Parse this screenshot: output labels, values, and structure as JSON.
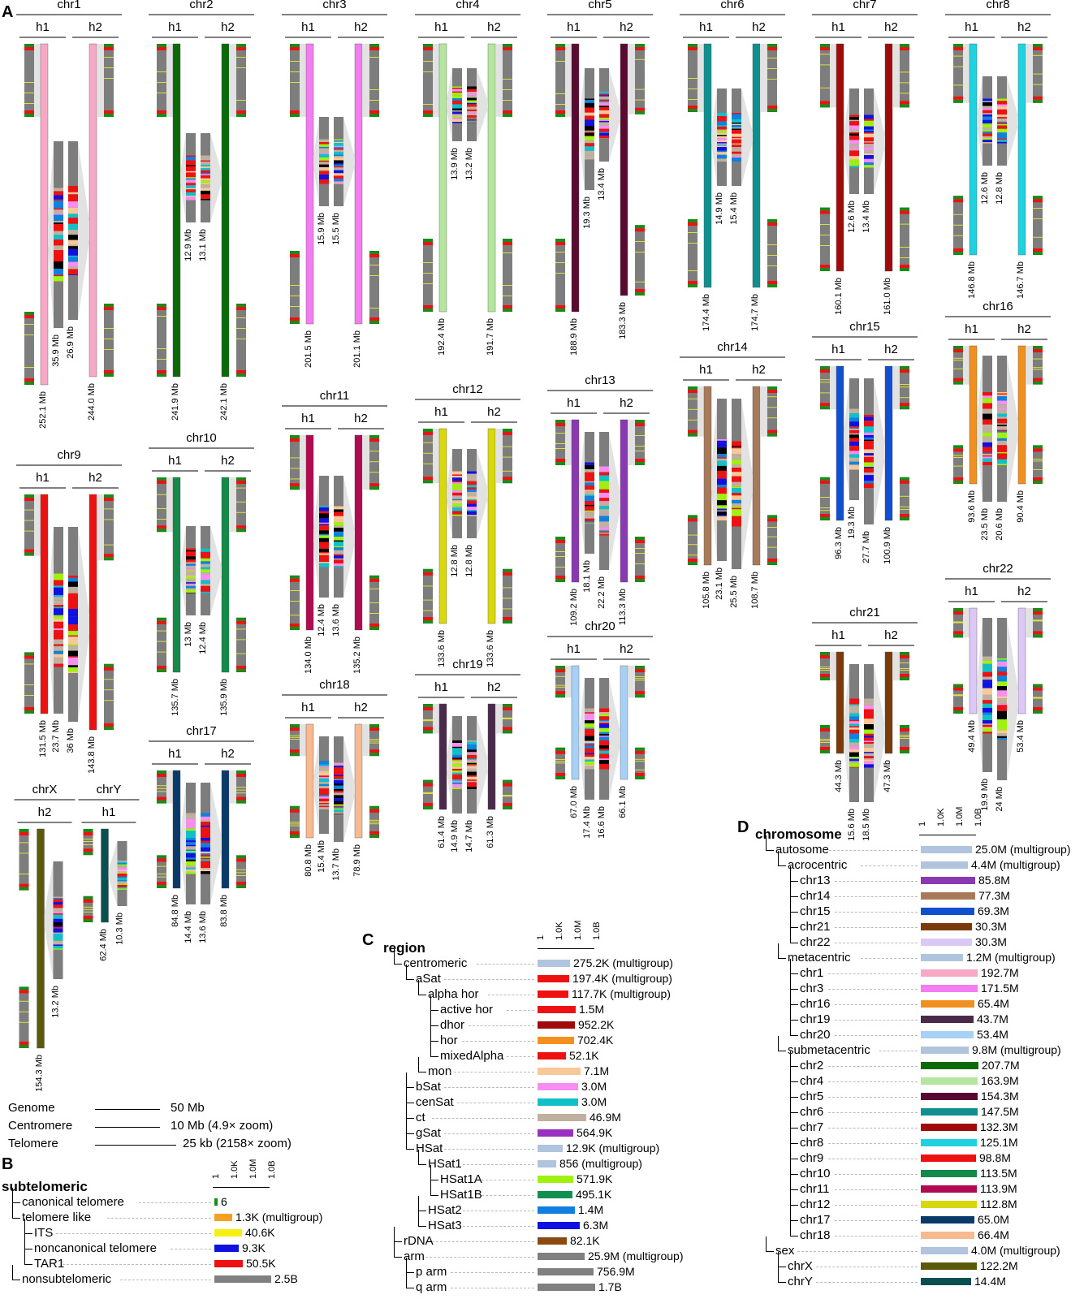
{
  "panels": {
    "a": "A",
    "b": "B",
    "c": "C",
    "d": "D"
  },
  "haplotypes": {
    "h1": "h1",
    "h2": "h2"
  },
  "chromosomes": [
    {
      "name": "chr1",
      "color": "#f7a8c4",
      "h1": "252.1 Mb",
      "h2": "244.0 Mb",
      "c1": "35.9 Mb",
      "c2": "26.9 Mb"
    },
    {
      "name": "chr2",
      "color": "#0a6a0a",
      "h1": "241.9 Mb",
      "h2": "242.1 Mb",
      "c1": "12.9 Mb",
      "c2": "13.1 Mb"
    },
    {
      "name": "chr3",
      "color": "#f37cf0",
      "h1": "201.5 Mb",
      "h2": "201.1 Mb",
      "c1": "15.9 Mb",
      "c2": "15.5 Mb"
    },
    {
      "name": "chr4",
      "color": "#b4e6a0",
      "h1": "192.4 Mb",
      "h2": "191.7 Mb",
      "c1": "13.9 Mb",
      "c2": "13.2 Mb"
    },
    {
      "name": "chr5",
      "color": "#5a0a30",
      "h1": "188.9 Mb",
      "h2": "183.3 Mb",
      "c1": "19.3 Mb",
      "c2": "13.4 Mb"
    },
    {
      "name": "chr6",
      "color": "#0f8f8f",
      "h1": "174.4 Mb",
      "h2": "174.7 Mb",
      "c1": "14.9 Mb",
      "c2": "15.4 Mb"
    },
    {
      "name": "chr7",
      "color": "#a00a0a",
      "h1": "160.1 Mb",
      "h2": "161.0 Mb",
      "c1": "12.6 Mb",
      "c2": "13.4 Mb"
    },
    {
      "name": "chr8",
      "color": "#1ed2e0",
      "h1": "146.8 Mb",
      "h2": "146.7 Mb",
      "c1": "12.6 Mb",
      "c2": "12.8 Mb"
    },
    {
      "name": "chr9",
      "color": "#ee1111",
      "h1": "131.5 Mb",
      "h2": "143.8 Mb",
      "c1": "23.7 Mb",
      "c2": "36 Mb"
    },
    {
      "name": "chr10",
      "color": "#138a4a",
      "h1": "135.7 Mb",
      "h2": "135.9 Mb",
      "c1": "13 Mb",
      "c2": "12.4 Mb"
    },
    {
      "name": "chr11",
      "color": "#b00a50",
      "h1": "134.0 Mb",
      "h2": "135.2 Mb",
      "c1": "12.4 Mb",
      "c2": "13.6 Mb"
    },
    {
      "name": "chr12",
      "color": "#d8d80a",
      "h1": "133.6 Mb",
      "h2": "133.6 Mb",
      "c1": "12.8 Mb",
      "c2": "12.8 Mb"
    },
    {
      "name": "chr13",
      "color": "#8a3ab0",
      "h1": "109.2 Mb",
      "h2": "113.3 Mb",
      "c1": "18.1 Mb",
      "c2": "22.2 Mb"
    },
    {
      "name": "chr14",
      "color": "#a87a5a",
      "h1": "105.8 Mb",
      "h2": "108.7 Mb",
      "c1": "23.1 Mb",
      "c2": "25.5 Mb"
    },
    {
      "name": "chr15",
      "color": "#1050d0",
      "h1": "96.3 Mb",
      "h2": "100.9 Mb",
      "c1": "19.3 Mb",
      "c2": "27.7 Mb"
    },
    {
      "name": "chr16",
      "color": "#f09020",
      "h1": "93.6 Mb",
      "h2": "90.4 Mb",
      "c1": "23.5 Mb",
      "c2": "20.6 Mb"
    },
    {
      "name": "chr17",
      "color": "#0a3a6a",
      "h1": "84.8 Mb",
      "h2": "83.8 Mb",
      "c1": "14.4 Mb",
      "c2": "13.6 Mb"
    },
    {
      "name": "chr18",
      "color": "#f8b890",
      "h1": "80.8 Mb",
      "h2": "78.9 Mb",
      "c1": "15.4 Mb",
      "c2": "13.7 Mb"
    },
    {
      "name": "chr19",
      "color": "#4a2a4a",
      "h1": "61.4 Mb",
      "h2": "61.3 Mb",
      "c1": "14.9 Mb",
      "c2": "14.7 Mb"
    },
    {
      "name": "chr20",
      "color": "#a8d0f4",
      "h1": "67.0 Mb",
      "h2": "66.1 Mb",
      "c1": "17.4 Mb",
      "c2": "16.6 Mb"
    },
    {
      "name": "chr21",
      "color": "#7a3a0a",
      "h1": "44.3 Mb",
      "h2": "47.3 Mb",
      "c1": "15.6 Mb",
      "c2": "18.5 Mb"
    },
    {
      "name": "chr22",
      "color": "#dcc8f4",
      "h1": "49.4 Mb",
      "h2": "53.4 Mb",
      "c1": "19.9 Mb",
      "c2": "24 Mb"
    },
    {
      "name": "chrX",
      "color": "#5a5a0a",
      "hap": "h2",
      "len": "154.3 Mb",
      "c": "13.2 Mb"
    },
    {
      "name": "chrY",
      "color": "#0a5050",
      "hap": "h1",
      "len": "62.4 Mb",
      "c": "10.3 Mb"
    }
  ],
  "scale_legend": [
    {
      "label": "Genome",
      "value": "50 Mb"
    },
    {
      "label": "Centromere",
      "value": "10 Mb (4.9× zoom)"
    },
    {
      "label": "Telomere",
      "value": "25 kb (2158× zoom)"
    }
  ],
  "axis_ticks": [
    "1",
    "1.0K",
    "1.0M",
    "1.0B"
  ],
  "tree_b": {
    "title": "subtelomeric",
    "rows": [
      {
        "label": "canonical telomere",
        "value": "6",
        "color": "#1a8a1a",
        "depth": 1,
        "w": 4
      },
      {
        "label": "telomere like",
        "value": "1.3K (multigroup)",
        "color": "#f5a020",
        "depth": 1,
        "w": 22
      },
      {
        "label": "ITS",
        "value": "40.6K",
        "color": "#f5f010",
        "depth": 2,
        "w": 34
      },
      {
        "label": "noncanonical telomere",
        "value": "9.3K",
        "color": "#1010e0",
        "depth": 2,
        "w": 30
      },
      {
        "label": "TAR1",
        "value": "50.5K",
        "color": "#ee1111",
        "depth": 2,
        "w": 35
      },
      {
        "label": "nonsubtelomeric",
        "value": "2.5B",
        "color": "#808080",
        "depth": 1,
        "w": 70
      }
    ]
  },
  "tree_c": {
    "title": "region",
    "rows": [
      {
        "label": "centromeric",
        "value": "275.2K (multigroup)",
        "color": "#b0c4de",
        "depth": 1,
        "w": 40
      },
      {
        "label": "aSat",
        "value": "197.4K (multigroup)",
        "color": "#ee1111",
        "depth": 2,
        "w": 39
      },
      {
        "label": "alpha hor",
        "value": "117.7K (multigroup)",
        "color": "#ee1111",
        "depth": 3,
        "w": 38
      },
      {
        "label": "active hor",
        "value": "1.5M",
        "color": "#ee1111",
        "depth": 4,
        "w": 47
      },
      {
        "label": "dhor",
        "value": "952.2K",
        "color": "#a00a0a",
        "depth": 4,
        "w": 46
      },
      {
        "label": "hor",
        "value": "702.4K",
        "color": "#f59020",
        "depth": 4,
        "w": 45
      },
      {
        "label": "mixedAlpha",
        "value": "52.1K",
        "color": "#ee1111",
        "depth": 4,
        "w": 35
      },
      {
        "label": "mon",
        "value": "7.1M",
        "color": "#f8c898",
        "depth": 3,
        "w": 53
      },
      {
        "label": "bSat",
        "value": "3.0M",
        "color": "#f58ef0",
        "depth": 2,
        "w": 50
      },
      {
        "label": "cenSat",
        "value": "3.0M",
        "color": "#10c0c8",
        "depth": 2,
        "w": 50
      },
      {
        "label": "ct",
        "value": "46.9M",
        "color": "#c0b0a0",
        "depth": 2,
        "w": 60
      },
      {
        "label": "gSat",
        "value": "564.9K",
        "color": "#9a30c0",
        "depth": 2,
        "w": 44
      },
      {
        "label": "HSat",
        "value": "12.9K (multigroup)",
        "color": "#b0c4de",
        "depth": 2,
        "w": 31
      },
      {
        "label": "HSat1",
        "value": "856 (multigroup)",
        "color": "#b0c4de",
        "depth": 3,
        "w": 23
      },
      {
        "label": "HSat1A",
        "value": "571.9K",
        "color": "#a0f010",
        "depth": 4,
        "w": 44
      },
      {
        "label": "HSat1B",
        "value": "495.1K",
        "color": "#109050",
        "depth": 4,
        "w": 43
      },
      {
        "label": "HSat2",
        "value": "1.4M",
        "color": "#1080e0",
        "depth": 3,
        "w": 46
      },
      {
        "label": "HSat3",
        "value": "6.3M",
        "color": "#1010e0",
        "depth": 3,
        "w": 52
      },
      {
        "label": "rDNA",
        "value": "82.1K",
        "color": "#8a4a10",
        "depth": 1,
        "w": 36
      },
      {
        "label": "arm",
        "value": "25.9M (multigroup)",
        "color": "#808080",
        "depth": 1,
        "w": 58
      },
      {
        "label": "p arm",
        "value": "756.9M",
        "color": "#808080",
        "depth": 2,
        "w": 69
      },
      {
        "label": "q arm",
        "value": "1.7B",
        "color": "#808080",
        "depth": 2,
        "w": 71
      }
    ]
  },
  "tree_d": {
    "title": "chromosome",
    "rows": [
      {
        "label": "autosome",
        "value": "25.0M (multigroup)",
        "color": "#b0c4de",
        "depth": 1,
        "w": 63
      },
      {
        "label": "acrocentric",
        "value": "4.4M (multigroup)",
        "color": "#b0c4de",
        "depth": 2,
        "w": 58
      },
      {
        "label": "chr13",
        "value": "85.8M",
        "color": "#8a3ab0",
        "depth": 3,
        "w": 67
      },
      {
        "label": "chr14",
        "value": "77.3M",
        "color": "#a87a5a",
        "depth": 3,
        "w": 67
      },
      {
        "label": "chr15",
        "value": "69.3M",
        "color": "#1050d0",
        "depth": 3,
        "w": 66
      },
      {
        "label": "chr21",
        "value": "30.3M",
        "color": "#7a3a0a",
        "depth": 3,
        "w": 63
      },
      {
        "label": "chr22",
        "value": "30.3M",
        "color": "#dcc8f4",
        "depth": 3,
        "w": 63
      },
      {
        "label": "metacentric",
        "value": "1.2M (multigroup)",
        "color": "#b0c4de",
        "depth": 2,
        "w": 52
      },
      {
        "label": "chr1",
        "value": "192.7M",
        "color": "#f7a8c4",
        "depth": 3,
        "w": 70
      },
      {
        "label": "chr3",
        "value": "171.5M",
        "color": "#f37cf0",
        "depth": 3,
        "w": 70
      },
      {
        "label": "chr16",
        "value": "65.4M",
        "color": "#f09020",
        "depth": 3,
        "w": 66
      },
      {
        "label": "chr19",
        "value": "43.7M",
        "color": "#4a2a4a",
        "depth": 3,
        "w": 65
      },
      {
        "label": "chr20",
        "value": "53.4M",
        "color": "#a8d0f4",
        "depth": 3,
        "w": 65
      },
      {
        "label": "submetacentric",
        "value": "9.8M (multigroup)",
        "color": "#b0c4de",
        "depth": 2,
        "w": 59
      },
      {
        "label": "chr2",
        "value": "207.7M",
        "color": "#0a6a0a",
        "depth": 3,
        "w": 71
      },
      {
        "label": "chr4",
        "value": "163.9M",
        "color": "#b4e6a0",
        "depth": 3,
        "w": 70
      },
      {
        "label": "chr5",
        "value": "154.3M",
        "color": "#5a0a30",
        "depth": 3,
        "w": 70
      },
      {
        "label": "chr6",
        "value": "147.5M",
        "color": "#0f8f8f",
        "depth": 3,
        "w": 70
      },
      {
        "label": "chr7",
        "value": "132.3M",
        "color": "#a00a0a",
        "depth": 3,
        "w": 69
      },
      {
        "label": "chr8",
        "value": "125.1M",
        "color": "#1ed2e0",
        "depth": 3,
        "w": 69
      },
      {
        "label": "chr9",
        "value": "98.8M",
        "color": "#ee1111",
        "depth": 3,
        "w": 68
      },
      {
        "label": "chr10",
        "value": "113.5M",
        "color": "#138a4a",
        "depth": 3,
        "w": 69
      },
      {
        "label": "chr11",
        "value": "113.9M",
        "color": "#b00a50",
        "depth": 3,
        "w": 69
      },
      {
        "label": "chr12",
        "value": "112.8M",
        "color": "#d8d80a",
        "depth": 3,
        "w": 69
      },
      {
        "label": "chr17",
        "value": "65.0M",
        "color": "#0a3a6a",
        "depth": 3,
        "w": 66
      },
      {
        "label": "chr18",
        "value": "66.4M",
        "color": "#f8b890",
        "depth": 3,
        "w": 66
      },
      {
        "label": "sex",
        "value": "4.0M (multigroup)",
        "color": "#b0c4de",
        "depth": 1,
        "w": 58
      },
      {
        "label": "chrX",
        "value": "122.2M",
        "color": "#5a5a0a",
        "depth": 2,
        "w": 69
      },
      {
        "label": "chrY",
        "value": "14.4M",
        "color": "#0a5050",
        "depth": 2,
        "w": 62
      }
    ]
  }
}
